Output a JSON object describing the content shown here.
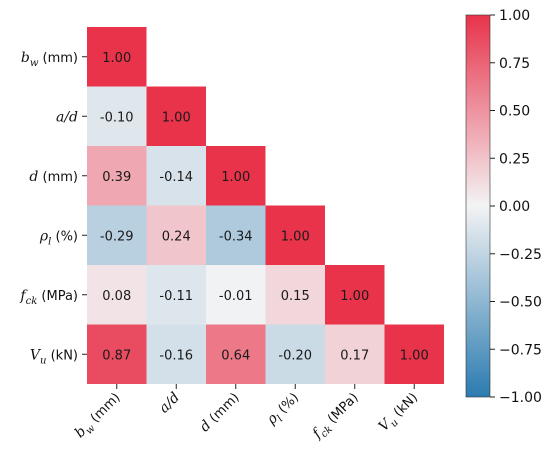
{
  "chart_data": {
    "type": "heatmap",
    "variables": [
      {
        "sym": "b",
        "sub": "w",
        "unit": "(mm)"
      },
      {
        "sym": "a/d",
        "sub": "",
        "unit": ""
      },
      {
        "sym": "d",
        "sub": "",
        "unit": "(mm)"
      },
      {
        "sym": "ρ",
        "sub": "l",
        "unit": "(%)"
      },
      {
        "sym": "f",
        "sub": "ck",
        "unit": "(MPa)"
      },
      {
        "sym": "V",
        "sub": "u",
        "unit": "(kN)"
      }
    ],
    "matrix": [
      [
        1.0
      ],
      [
        -0.1,
        1.0
      ],
      [
        0.39,
        -0.14,
        1.0
      ],
      [
        -0.29,
        0.24,
        -0.34,
        1.0
      ],
      [
        0.08,
        -0.11,
        -0.01,
        0.15,
        1.0
      ],
      [
        0.87,
        -0.16,
        0.64,
        -0.2,
        0.17,
        1.0
      ]
    ],
    "cell_labels": [
      [
        "1.00"
      ],
      [
        "-0.10",
        "1.00"
      ],
      [
        "0.39",
        "-0.14",
        "1.00"
      ],
      [
        "-0.29",
        "0.24",
        "-0.34",
        "1.00"
      ],
      [
        "0.08",
        "-0.11",
        "-0.01",
        "0.15",
        "1.00"
      ],
      [
        "0.87",
        "-0.16",
        "0.64",
        "-0.20",
        "0.17",
        "1.00"
      ]
    ],
    "lower_triangle_only": true,
    "colorbar": {
      "range": [
        -1.0,
        1.0
      ],
      "ticks": [
        1.0,
        0.75,
        0.5,
        0.25,
        0.0,
        -0.25,
        -0.5,
        -0.75,
        -1.0
      ],
      "tick_labels": [
        "1.00",
        "0.75",
        "0.50",
        "0.25",
        "0.00",
        "−0.25",
        "−0.50",
        "−0.75",
        "−1.00"
      ],
      "colors": {
        "negative": "#2b7bb0",
        "middle": "#f3f3f4",
        "positive": "#e8334b"
      }
    },
    "title": "",
    "xlabel": "",
    "ylabel": ""
  }
}
